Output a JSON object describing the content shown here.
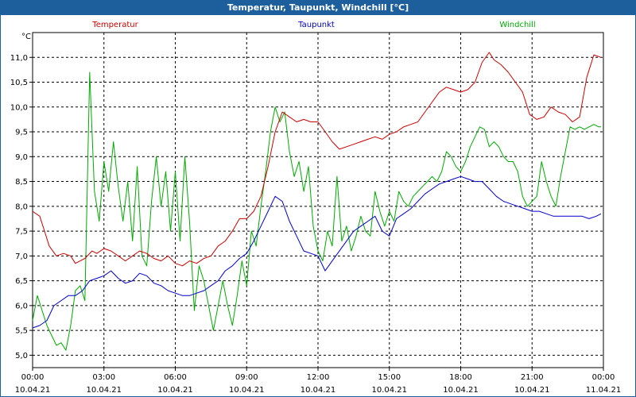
{
  "window": {
    "title": "Temperatur, Taupunkt, Windchill [°C]"
  },
  "chart_data": {
    "type": "line",
    "title": "Temperatur, Taupunkt, Windchill [°C]",
    "ylabel": "°C",
    "xlabel": "",
    "ylim": [
      4.75,
      11.5
    ],
    "xlim": [
      0,
      24
    ],
    "grid": true,
    "y_ticks": [
      "5,0",
      "5,5",
      "6,0",
      "6,5",
      "7,0",
      "7,5",
      "8,0",
      "8,5",
      "9,0",
      "9,5",
      "10,0",
      "10,5",
      "11,0"
    ],
    "x_ticks": [
      {
        "time": "00:00",
        "date": "10.04.21"
      },
      {
        "time": "03:00",
        "date": "10.04.21"
      },
      {
        "time": "06:00",
        "date": "10.04.21"
      },
      {
        "time": "09:00",
        "date": "10.04.21"
      },
      {
        "time": "12:00",
        "date": "10.04.21"
      },
      {
        "time": "15:00",
        "date": "10.04.21"
      },
      {
        "time": "18:00",
        "date": "10.04.21"
      },
      {
        "time": "21:00",
        "date": "10.04.21"
      },
      {
        "time": "00:00",
        "date": "11.04.21"
      }
    ],
    "series": [
      {
        "name": "Temperatur",
        "color": "#cc0000",
        "x": [
          0,
          0.3,
          0.5,
          0.7,
          1.0,
          1.3,
          1.6,
          1.8,
          2.0,
          2.2,
          2.5,
          2.7,
          3.0,
          3.3,
          3.6,
          3.9,
          4.2,
          4.5,
          4.8,
          5.1,
          5.4,
          5.7,
          6.0,
          6.3,
          6.6,
          6.9,
          7.2,
          7.5,
          7.8,
          8.1,
          8.4,
          8.7,
          9.0,
          9.3,
          9.6,
          9.9,
          10.2,
          10.5,
          10.8,
          11.1,
          11.4,
          11.7,
          12.0,
          12.3,
          12.6,
          12.9,
          13.2,
          13.5,
          13.8,
          14.1,
          14.4,
          14.7,
          15.0,
          15.3,
          15.6,
          15.9,
          16.2,
          16.5,
          16.8,
          17.1,
          17.4,
          17.7,
          18.0,
          18.3,
          18.6,
          18.9,
          19.2,
          19.4,
          19.7,
          20.0,
          20.3,
          20.6,
          20.9,
          21.2,
          21.5,
          21.8,
          22.1,
          22.4,
          22.7,
          23.0,
          23.3,
          23.6,
          23.9
        ],
        "values": [
          7.9,
          7.8,
          7.5,
          7.2,
          7.0,
          7.05,
          7.0,
          6.85,
          6.9,
          6.95,
          7.1,
          7.05,
          7.15,
          7.1,
          7.0,
          6.9,
          7.0,
          7.1,
          7.05,
          6.95,
          6.9,
          7.0,
          6.85,
          6.8,
          6.9,
          6.85,
          6.95,
          7.0,
          7.2,
          7.3,
          7.5,
          7.75,
          7.75,
          7.9,
          8.2,
          8.8,
          9.5,
          9.9,
          9.8,
          9.7,
          9.75,
          9.7,
          9.7,
          9.5,
          9.3,
          9.15,
          9.2,
          9.25,
          9.3,
          9.35,
          9.4,
          9.35,
          9.45,
          9.5,
          9.6,
          9.65,
          9.7,
          9.9,
          10.1,
          10.3,
          10.4,
          10.35,
          10.3,
          10.35,
          10.5,
          10.9,
          11.1,
          10.95,
          10.85,
          10.7,
          10.5,
          10.3,
          9.85,
          9.75,
          9.8,
          10.0,
          9.9,
          9.85,
          9.7,
          9.8,
          10.6,
          11.05,
          11.0
        ]
      },
      {
        "name": "Taupunkt",
        "color": "#0000cc",
        "x": [
          0,
          0.3,
          0.6,
          0.9,
          1.2,
          1.5,
          1.8,
          2.1,
          2.4,
          2.7,
          3.0,
          3.3,
          3.6,
          3.9,
          4.2,
          4.5,
          4.8,
          5.1,
          5.4,
          5.7,
          6.0,
          6.3,
          6.6,
          6.9,
          7.2,
          7.5,
          7.8,
          8.1,
          8.4,
          8.7,
          9.0,
          9.3,
          9.6,
          9.9,
          10.2,
          10.5,
          10.8,
          11.1,
          11.4,
          11.7,
          12.0,
          12.3,
          12.6,
          12.9,
          13.2,
          13.5,
          13.8,
          14.1,
          14.4,
          14.7,
          15.0,
          15.3,
          15.6,
          15.9,
          16.2,
          16.5,
          16.8,
          17.1,
          17.4,
          17.7,
          18.0,
          18.3,
          18.6,
          18.9,
          19.2,
          19.5,
          19.8,
          20.1,
          20.4,
          20.7,
          21.0,
          21.3,
          21.6,
          21.9,
          22.2,
          22.5,
          22.8,
          23.1,
          23.4,
          23.7,
          23.9
        ],
        "values": [
          5.55,
          5.6,
          5.7,
          6.0,
          6.1,
          6.2,
          6.2,
          6.3,
          6.5,
          6.55,
          6.6,
          6.7,
          6.55,
          6.45,
          6.5,
          6.65,
          6.6,
          6.45,
          6.4,
          6.3,
          6.25,
          6.2,
          6.2,
          6.25,
          6.3,
          6.4,
          6.5,
          6.7,
          6.8,
          6.95,
          7.05,
          7.3,
          7.6,
          7.9,
          8.2,
          8.1,
          7.7,
          7.4,
          7.1,
          7.05,
          7.0,
          6.7,
          6.9,
          7.1,
          7.3,
          7.5,
          7.6,
          7.7,
          7.8,
          7.5,
          7.4,
          7.75,
          7.85,
          7.95,
          8.1,
          8.25,
          8.35,
          8.45,
          8.5,
          8.55,
          8.6,
          8.55,
          8.5,
          8.5,
          8.35,
          8.2,
          8.1,
          8.05,
          8.0,
          7.95,
          7.9,
          7.9,
          7.85,
          7.8,
          7.8,
          7.8,
          7.8,
          7.8,
          7.75,
          7.8,
          7.85
        ]
      },
      {
        "name": "Windchill",
        "color": "#00aa00",
        "x": [
          0,
          0.2,
          0.4,
          0.6,
          0.8,
          1.0,
          1.2,
          1.4,
          1.6,
          1.8,
          2.0,
          2.2,
          2.4,
          2.6,
          2.8,
          3.0,
          3.2,
          3.4,
          3.6,
          3.8,
          4.0,
          4.2,
          4.4,
          4.6,
          4.8,
          5.0,
          5.2,
          5.4,
          5.6,
          5.8,
          6.0,
          6.2,
          6.4,
          6.6,
          6.8,
          7.0,
          7.2,
          7.4,
          7.6,
          7.8,
          8.0,
          8.2,
          8.4,
          8.6,
          8.8,
          9.0,
          9.2,
          9.4,
          9.6,
          9.8,
          10.0,
          10.2,
          10.4,
          10.6,
          10.8,
          11.0,
          11.2,
          11.4,
          11.6,
          11.8,
          12.0,
          12.2,
          12.4,
          12.6,
          12.8,
          13.0,
          13.2,
          13.4,
          13.6,
          13.8,
          14.0,
          14.2,
          14.4,
          14.6,
          14.8,
          15.0,
          15.2,
          15.4,
          15.6,
          15.8,
          16.0,
          16.2,
          16.4,
          16.6,
          16.8,
          17.0,
          17.2,
          17.4,
          17.6,
          17.8,
          18.0,
          18.2,
          18.4,
          18.6,
          18.8,
          19.0,
          19.2,
          19.4,
          19.6,
          19.8,
          20.0,
          20.2,
          20.4,
          20.6,
          20.8,
          21.0,
          21.2,
          21.4,
          21.6,
          21.8,
          22.0,
          22.2,
          22.4,
          22.6,
          22.8,
          23.0,
          23.2,
          23.4,
          23.6,
          23.8,
          23.9
        ],
        "values": [
          5.7,
          6.2,
          5.9,
          5.6,
          5.4,
          5.2,
          5.25,
          5.1,
          5.6,
          6.3,
          6.4,
          6.1,
          10.7,
          8.3,
          7.7,
          8.9,
          8.3,
          9.3,
          8.4,
          7.7,
          8.5,
          7.3,
          8.8,
          7.0,
          6.8,
          8.1,
          9.0,
          8.0,
          8.7,
          7.5,
          8.7,
          7.3,
          9.0,
          7.7,
          5.9,
          6.8,
          6.5,
          6.0,
          5.5,
          6.0,
          6.5,
          6.0,
          5.6,
          6.2,
          6.9,
          6.4,
          7.5,
          7.2,
          8.0,
          8.7,
          9.5,
          10.0,
          9.7,
          9.9,
          9.1,
          8.6,
          8.9,
          8.3,
          8.8,
          7.6,
          7.1,
          6.9,
          7.5,
          7.2,
          8.6,
          7.3,
          7.6,
          7.1,
          7.4,
          7.8,
          7.5,
          7.4,
          8.3,
          7.9,
          7.6,
          7.9,
          7.7,
          8.3,
          8.1,
          8.0,
          8.2,
          8.3,
          8.4,
          8.5,
          8.6,
          8.5,
          8.7,
          9.1,
          9.0,
          8.8,
          8.7,
          8.9,
          9.2,
          9.4,
          9.6,
          9.55,
          9.2,
          9.3,
          9.2,
          9.0,
          8.9,
          8.9,
          8.7,
          8.2,
          8.0,
          8.1,
          8.2,
          8.9,
          8.5,
          8.2,
          8.0,
          8.6,
          9.1,
          9.6,
          9.55,
          9.6,
          9.55,
          9.6,
          9.65,
          9.6,
          9.6
        ]
      }
    ]
  }
}
